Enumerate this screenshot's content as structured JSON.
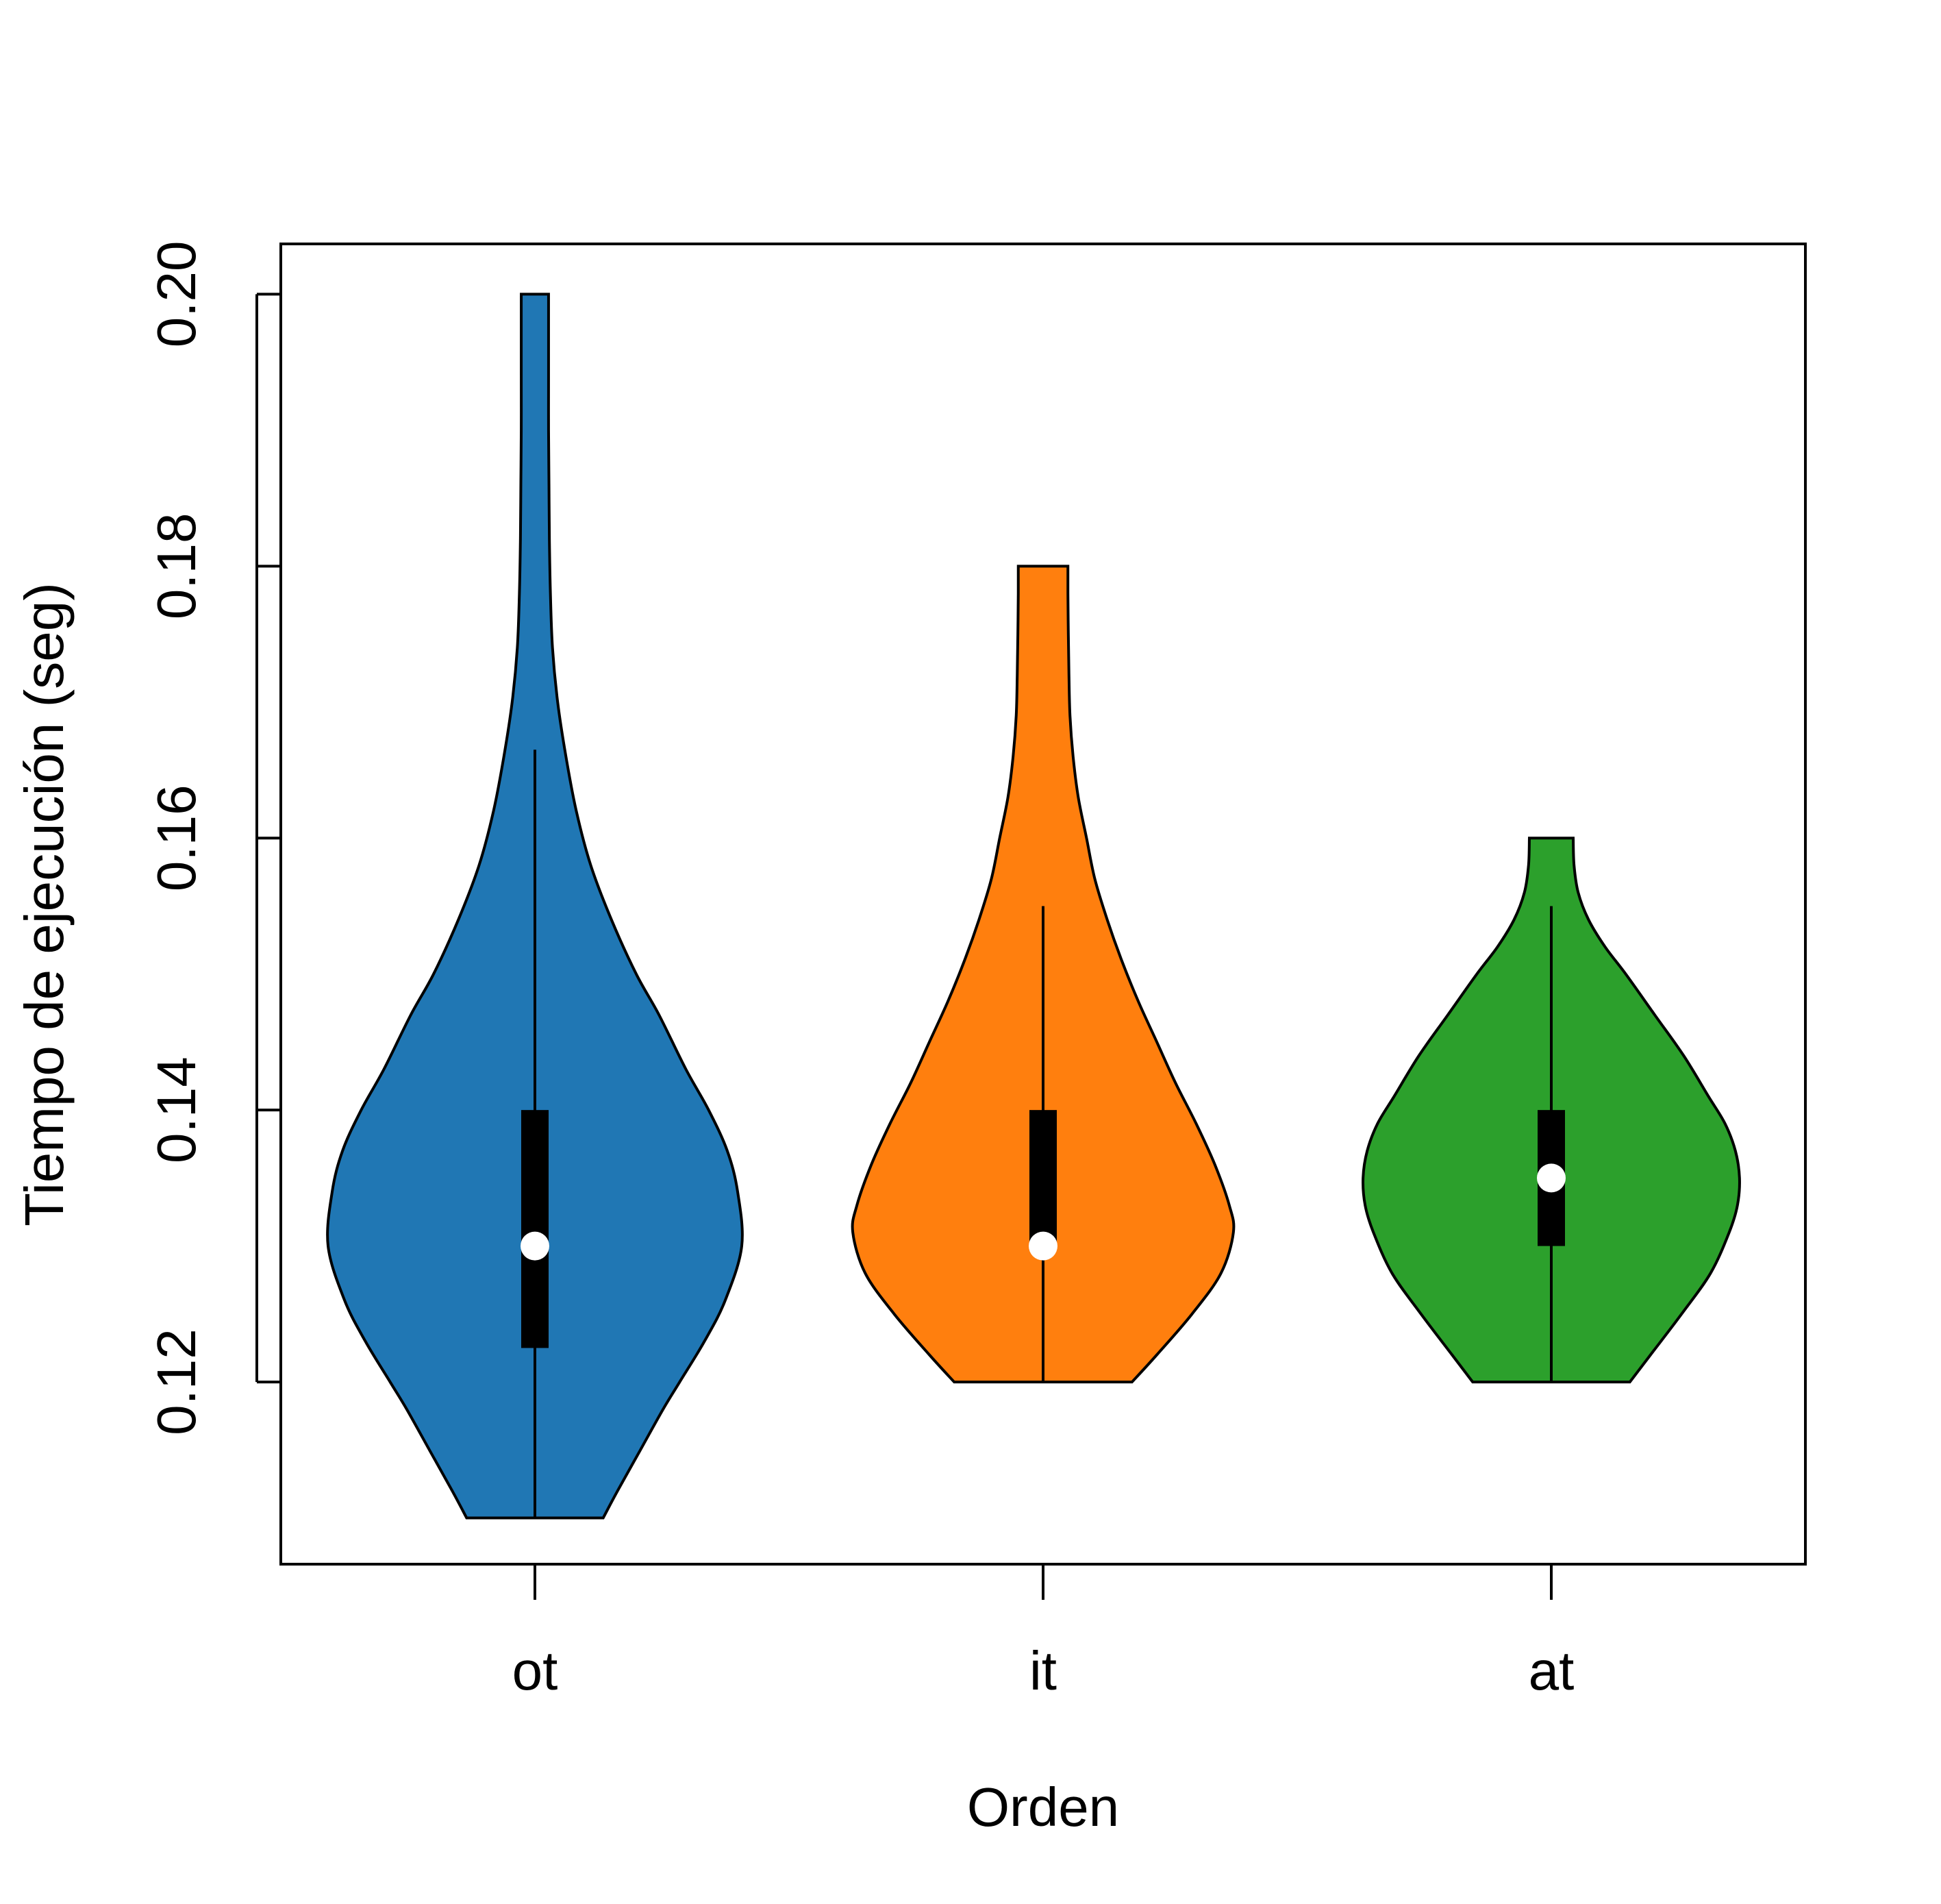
{
  "chart_data": {
    "type": "violin",
    "title": "",
    "xlabel": "Orden",
    "ylabel": "Tiempo de ejecución (seg)",
    "ylim": [
      0.1066,
      0.2037
    ],
    "yticks": [
      {
        "value": 0.12,
        "label": "0.12"
      },
      {
        "value": 0.14,
        "label": "0.14"
      },
      {
        "value": 0.16,
        "label": "0.16"
      },
      {
        "value": 0.18,
        "label": "0.18"
      },
      {
        "value": 0.2,
        "label": "0.20"
      }
    ],
    "grid": false,
    "legend": "none",
    "categories": [
      "ot",
      "it",
      "at"
    ],
    "series": [
      {
        "category": "ot",
        "color": "#2077b4",
        "min": 0.11,
        "max": 0.2,
        "q1": 0.1225,
        "median": 0.13,
        "q3": 0.14,
        "whisker_low": 0.11,
        "whisker_high": 0.1665,
        "density": [
          [
            0.11,
            0.33
          ],
          [
            0.112,
            0.4
          ],
          [
            0.115,
            0.51
          ],
          [
            0.118,
            0.62
          ],
          [
            0.12,
            0.7
          ],
          [
            0.123,
            0.82
          ],
          [
            0.126,
            0.92
          ],
          [
            0.13,
            1.0
          ],
          [
            0.134,
            0.98
          ],
          [
            0.137,
            0.93
          ],
          [
            0.14,
            0.84
          ],
          [
            0.143,
            0.73
          ],
          [
            0.147,
            0.6
          ],
          [
            0.15,
            0.49
          ],
          [
            0.154,
            0.37
          ],
          [
            0.158,
            0.27
          ],
          [
            0.162,
            0.2
          ],
          [
            0.166,
            0.15
          ],
          [
            0.17,
            0.11
          ],
          [
            0.174,
            0.085
          ],
          [
            0.178,
            0.075
          ],
          [
            0.182,
            0.07
          ],
          [
            0.186,
            0.068
          ],
          [
            0.19,
            0.066
          ],
          [
            0.194,
            0.066
          ],
          [
            0.197,
            0.066
          ],
          [
            0.2,
            0.066
          ]
        ]
      },
      {
        "category": "it",
        "color": "#ff7f0e",
        "min": 0.12,
        "max": 0.18,
        "q1": 0.13,
        "median": 0.13,
        "q3": 0.14,
        "whisker_low": 0.12,
        "whisker_high": 0.155,
        "density": [
          [
            0.12,
            0.43
          ],
          [
            0.122,
            0.55
          ],
          [
            0.125,
            0.72
          ],
          [
            0.128,
            0.86
          ],
          [
            0.131,
            0.92
          ],
          [
            0.133,
            0.9
          ],
          [
            0.136,
            0.83
          ],
          [
            0.139,
            0.74
          ],
          [
            0.142,
            0.64
          ],
          [
            0.145,
            0.55
          ],
          [
            0.148,
            0.46
          ],
          [
            0.151,
            0.38
          ],
          [
            0.154,
            0.31
          ],
          [
            0.157,
            0.25
          ],
          [
            0.16,
            0.21
          ],
          [
            0.163,
            0.17
          ],
          [
            0.166,
            0.145
          ],
          [
            0.169,
            0.13
          ],
          [
            0.172,
            0.125
          ],
          [
            0.175,
            0.122
          ],
          [
            0.178,
            0.12
          ],
          [
            0.18,
            0.12
          ]
        ]
      },
      {
        "category": "at",
        "color": "#2ca02c",
        "min": 0.12,
        "max": 0.16,
        "q1": 0.13,
        "median": 0.135,
        "q3": 0.14,
        "whisker_low": 0.12,
        "whisker_high": 0.155,
        "density": [
          [
            0.12,
            0.38
          ],
          [
            0.122,
            0.48
          ],
          [
            0.125,
            0.63
          ],
          [
            0.128,
            0.77
          ],
          [
            0.131,
            0.86
          ],
          [
            0.133,
            0.9
          ],
          [
            0.135,
            0.91
          ],
          [
            0.137,
            0.89
          ],
          [
            0.139,
            0.84
          ],
          [
            0.141,
            0.76
          ],
          [
            0.144,
            0.64
          ],
          [
            0.147,
            0.5
          ],
          [
            0.15,
            0.36
          ],
          [
            0.152,
            0.26
          ],
          [
            0.154,
            0.18
          ],
          [
            0.156,
            0.13
          ],
          [
            0.158,
            0.11
          ],
          [
            0.16,
            0.106
          ]
        ]
      }
    ]
  }
}
